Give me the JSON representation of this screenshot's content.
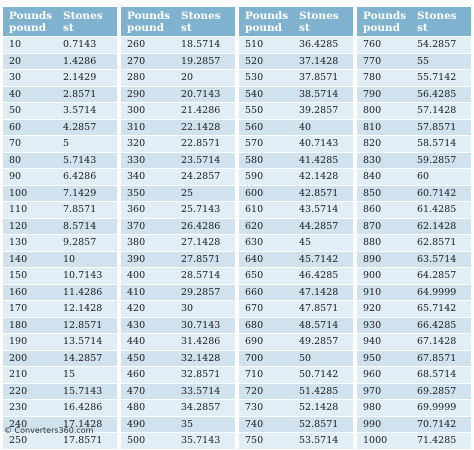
{
  "header": {
    "pounds_label": "Pounds\npound",
    "stones_label": "Stones\nst"
  },
  "columns": [
    [
      [
        "10",
        "0.7143"
      ],
      [
        "20",
        "1.4286"
      ],
      [
        "30",
        "2.1429"
      ],
      [
        "40",
        "2.8571"
      ],
      [
        "50",
        "3.5714"
      ],
      [
        "60",
        "4.2857"
      ],
      [
        "70",
        "5"
      ],
      [
        "80",
        "5.7143"
      ],
      [
        "90",
        "6.4286"
      ],
      [
        "100",
        "7.1429"
      ],
      [
        "110",
        "7.8571"
      ],
      [
        "120",
        "8.5714"
      ],
      [
        "130",
        "9.2857"
      ],
      [
        "140",
        "10"
      ],
      [
        "150",
        "10.7143"
      ],
      [
        "160",
        "11.4286"
      ],
      [
        "170",
        "12.1428"
      ],
      [
        "180",
        "12.8571"
      ],
      [
        "190",
        "13.5714"
      ],
      [
        "200",
        "14.2857"
      ],
      [
        "210",
        "15"
      ],
      [
        "220",
        "15.7143"
      ],
      [
        "230",
        "16.4286"
      ],
      [
        "240",
        "17.1428"
      ],
      [
        "250",
        "17.8571"
      ]
    ],
    [
      [
        "260",
        "18.5714"
      ],
      [
        "270",
        "19.2857"
      ],
      [
        "280",
        "20"
      ],
      [
        "290",
        "20.7143"
      ],
      [
        "300",
        "21.4286"
      ],
      [
        "310",
        "22.1428"
      ],
      [
        "320",
        "22.8571"
      ],
      [
        "330",
        "23.5714"
      ],
      [
        "340",
        "24.2857"
      ],
      [
        "350",
        "25"
      ],
      [
        "360",
        "25.7143"
      ],
      [
        "370",
        "26.4286"
      ],
      [
        "380",
        "27.1428"
      ],
      [
        "390",
        "27.8571"
      ],
      [
        "400",
        "28.5714"
      ],
      [
        "410",
        "29.2857"
      ],
      [
        "420",
        "30"
      ],
      [
        "430",
        "30.7143"
      ],
      [
        "440",
        "31.4286"
      ],
      [
        "450",
        "32.1428"
      ],
      [
        "460",
        "32.8571"
      ],
      [
        "470",
        "33.5714"
      ],
      [
        "480",
        "34.2857"
      ],
      [
        "490",
        "35"
      ],
      [
        "500",
        "35.7143"
      ]
    ],
    [
      [
        "510",
        "36.4285"
      ],
      [
        "520",
        "37.1428"
      ],
      [
        "530",
        "37.8571"
      ],
      [
        "540",
        "38.5714"
      ],
      [
        "550",
        "39.2857"
      ],
      [
        "560",
        "40"
      ],
      [
        "570",
        "40.7143"
      ],
      [
        "580",
        "41.4285"
      ],
      [
        "590",
        "42.1428"
      ],
      [
        "600",
        "42.8571"
      ],
      [
        "610",
        "43.5714"
      ],
      [
        "620",
        "44.2857"
      ],
      [
        "630",
        "45"
      ],
      [
        "640",
        "45.7142"
      ],
      [
        "650",
        "46.4285"
      ],
      [
        "660",
        "47.1428"
      ],
      [
        "670",
        "47.8571"
      ],
      [
        "680",
        "48.5714"
      ],
      [
        "690",
        "49.2857"
      ],
      [
        "700",
        "50"
      ],
      [
        "710",
        "50.7142"
      ],
      [
        "720",
        "51.4285"
      ],
      [
        "730",
        "52.1428"
      ],
      [
        "740",
        "52.8571"
      ],
      [
        "750",
        "53.5714"
      ]
    ],
    [
      [
        "760",
        "54.2857"
      ],
      [
        "770",
        "55"
      ],
      [
        "780",
        "55.7142"
      ],
      [
        "790",
        "56.4285"
      ],
      [
        "800",
        "57.1428"
      ],
      [
        "810",
        "57.8571"
      ],
      [
        "820",
        "58.5714"
      ],
      [
        "830",
        "59.2857"
      ],
      [
        "840",
        "60"
      ],
      [
        "850",
        "60.7142"
      ],
      [
        "860",
        "61.4285"
      ],
      [
        "870",
        "62.1428"
      ],
      [
        "880",
        "62.8571"
      ],
      [
        "890",
        "63.5714"
      ],
      [
        "900",
        "64.2857"
      ],
      [
        "910",
        "64.9999"
      ],
      [
        "920",
        "65.7142"
      ],
      [
        "930",
        "66.4285"
      ],
      [
        "940",
        "67.1428"
      ],
      [
        "950",
        "67.8571"
      ],
      [
        "960",
        "68.5714"
      ],
      [
        "970",
        "69.2857"
      ],
      [
        "980",
        "69.9999"
      ],
      [
        "990",
        "70.7142"
      ],
      [
        "1000",
        "71.4285"
      ]
    ]
  ],
  "footer": {
    "copyright": "© Converters360.com"
  },
  "colors": {
    "header_bg": "#7fb2cf",
    "row_odd": "#e2eef6",
    "row_even": "#cfe2ee"
  }
}
